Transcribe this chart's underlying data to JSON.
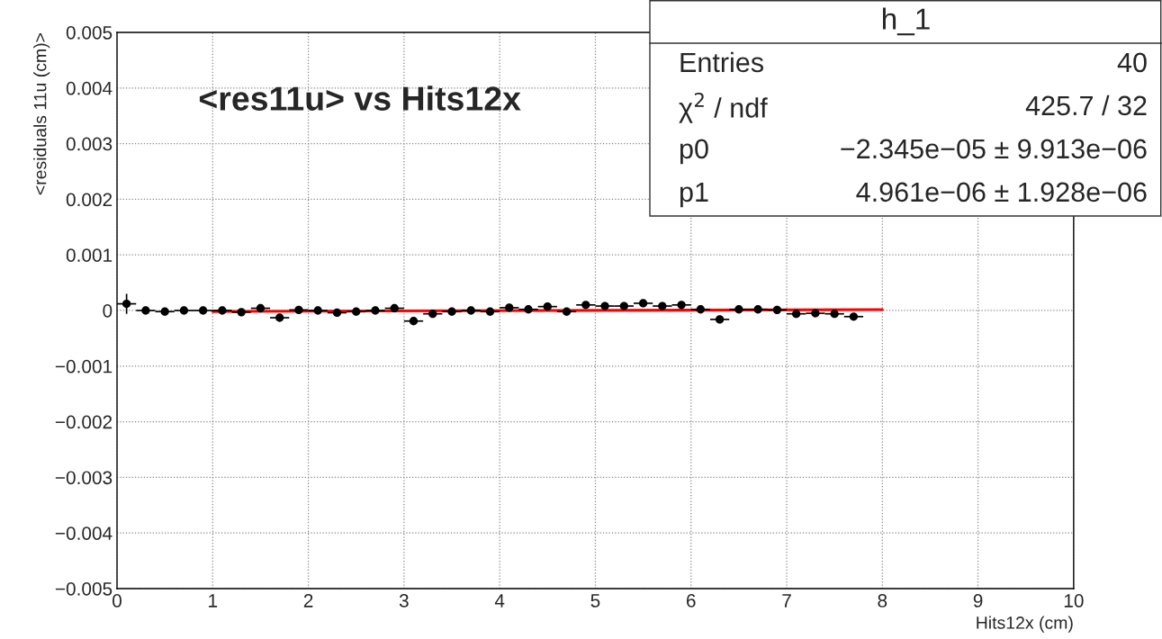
{
  "chart_data": {
    "type": "scatter",
    "title": "<res11u> vs Hits12x",
    "xlabel": "Hits12x (cm)",
    "ylabel": "<residuals 11u (cm)>",
    "x": [
      0.1,
      0.3,
      0.5,
      0.7,
      0.9,
      1.1,
      1.3,
      1.5,
      1.7,
      1.9,
      2.1,
      2.3,
      2.5,
      2.7,
      2.9,
      3.1,
      3.3,
      3.5,
      3.7,
      3.9,
      4.1,
      4.3,
      4.5,
      4.7,
      4.9,
      5.1,
      5.3,
      5.5,
      5.7,
      5.9,
      6.1,
      6.3,
      6.5,
      6.7,
      6.9,
      7.1,
      7.3,
      7.5,
      7.7
    ],
    "series": [
      {
        "color": "#000000",
        "marker": "circle",
        "values": [
          0.00012,
          0,
          -2e-05,
          0,
          0,
          0,
          -3e-05,
          4e-05,
          -0.00013,
          1e-05,
          0,
          -4e-05,
          -2e-05,
          0,
          4e-05,
          -0.00019,
          -6e-05,
          -2e-05,
          0,
          -2e-05,
          5e-05,
          2e-05,
          7e-05,
          -2e-05,
          0.0001,
          8e-05,
          8e-05,
          0.00013,
          8e-05,
          0.0001,
          2e-05,
          -0.00016,
          2e-05,
          2e-05,
          1e-05,
          -6e-05,
          -5e-05,
          -6e-05,
          -0.00011
        ],
        "errors": [
          0.00018,
          null,
          null,
          null,
          null,
          null,
          null,
          null,
          null,
          null,
          null,
          null,
          null,
          null,
          null,
          null,
          null,
          null,
          null,
          null,
          null,
          null,
          null,
          null,
          null,
          null,
          null,
          null,
          null,
          null,
          null,
          null,
          null,
          null,
          null,
          null,
          null,
          null,
          null
        ],
        "xerrors": [
          0.1,
          0.1,
          0.1,
          0.1,
          0.1,
          0.1,
          0.1,
          0.1,
          0.1,
          0.1,
          0.1,
          0.1,
          0.1,
          0.1,
          0.1,
          0.1,
          0.1,
          0.1,
          0.1,
          0.1,
          0.1,
          0.1,
          0.1,
          0.1,
          0.1,
          0.1,
          0.1,
          0.1,
          0.1,
          0.1,
          0.1,
          0.1,
          0.1,
          0.1,
          0.1,
          0.1,
          0.1,
          0.1,
          0.1
        ]
      },
      {
        "type": "line",
        "color": "#ff0000",
        "x": [
          1,
          8
        ],
        "values": [
          -1.8e-05,
          1.6e-05
        ]
      }
    ],
    "xlim": [
      0,
      10
    ],
    "xticks": [
      0,
      1,
      2,
      3,
      4,
      5,
      6,
      7,
      8,
      9,
      10
    ],
    "ylim": [
      -0.005,
      0.005
    ],
    "yticks": [
      {
        "value": -0.005,
        "label": "−0.005"
      },
      {
        "value": -0.004,
        "label": "−0.004"
      },
      {
        "value": -0.003,
        "label": "−0.003"
      },
      {
        "value": -0.002,
        "label": "−0.002"
      },
      {
        "value": -0.001,
        "label": "−0.001"
      },
      0,
      0.001,
      0.002,
      0.003,
      0.004,
      0.005
    ],
    "grid": true,
    "annotations": [
      "h_1",
      "Entries",
      "40",
      "χ$^{2}$ / ndf",
      "425.7 / 32",
      "p0",
      "−2.345e−05 ± 9.913e−06",
      "p1",
      "4.961e−06 ± 1.928e−06"
    ]
  }
}
